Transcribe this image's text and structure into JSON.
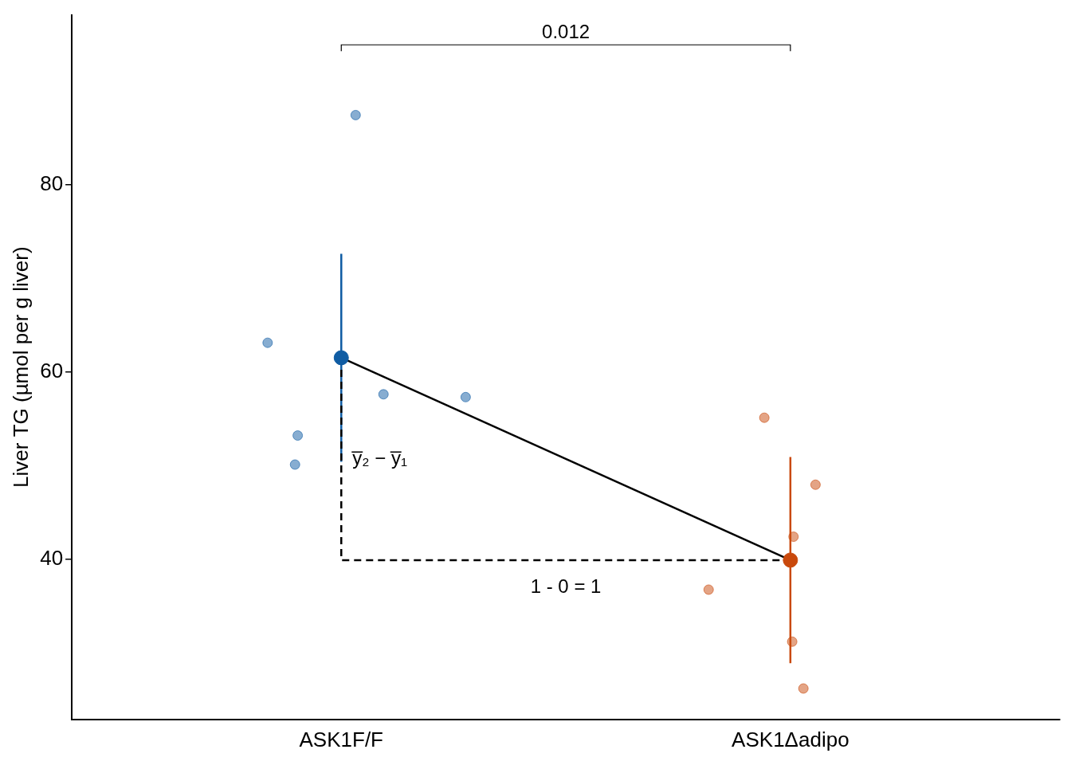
{
  "chart_data": {
    "type": "scatter",
    "y_label": "Liver TG (µmol per g liver)",
    "xlim": [
      -0.6,
      1.6
    ],
    "xticks": [
      {
        "value": 0,
        "label": "ASK1F/F"
      },
      {
        "value": 1,
        "label": "ASK1Δadipo"
      }
    ],
    "ylim": [
      22.9,
      98.1
    ],
    "yticks": [
      40,
      60,
      80
    ],
    "grid": false,
    "series": [
      {
        "name": "ASK1F/F",
        "color": "#0f5ca3",
        "x": [
          0.032,
          -0.164,
          -0.097,
          -0.103,
          0.094,
          0.277
        ],
        "values": [
          87.4,
          63.1,
          53.2,
          50.1,
          57.6,
          57.3
        ],
        "mean": 61.5,
        "error": 11.1
      },
      {
        "name": "ASK1Δadipo",
        "color": "#c9490c",
        "x": [
          -0.058,
          0.056,
          0.007,
          -0.182,
          0.004,
          0.029
        ],
        "values": [
          55.1,
          47.95,
          42.4,
          36.75,
          31.2,
          26.2
        ],
        "mean": 39.9,
        "error": 11.0
      }
    ],
    "bracket": {
      "label": "0.012",
      "y": 94.9
    },
    "annotations": {
      "difference": "y̅₂ − y̅₁",
      "run": "1 - 0 = 1"
    }
  }
}
